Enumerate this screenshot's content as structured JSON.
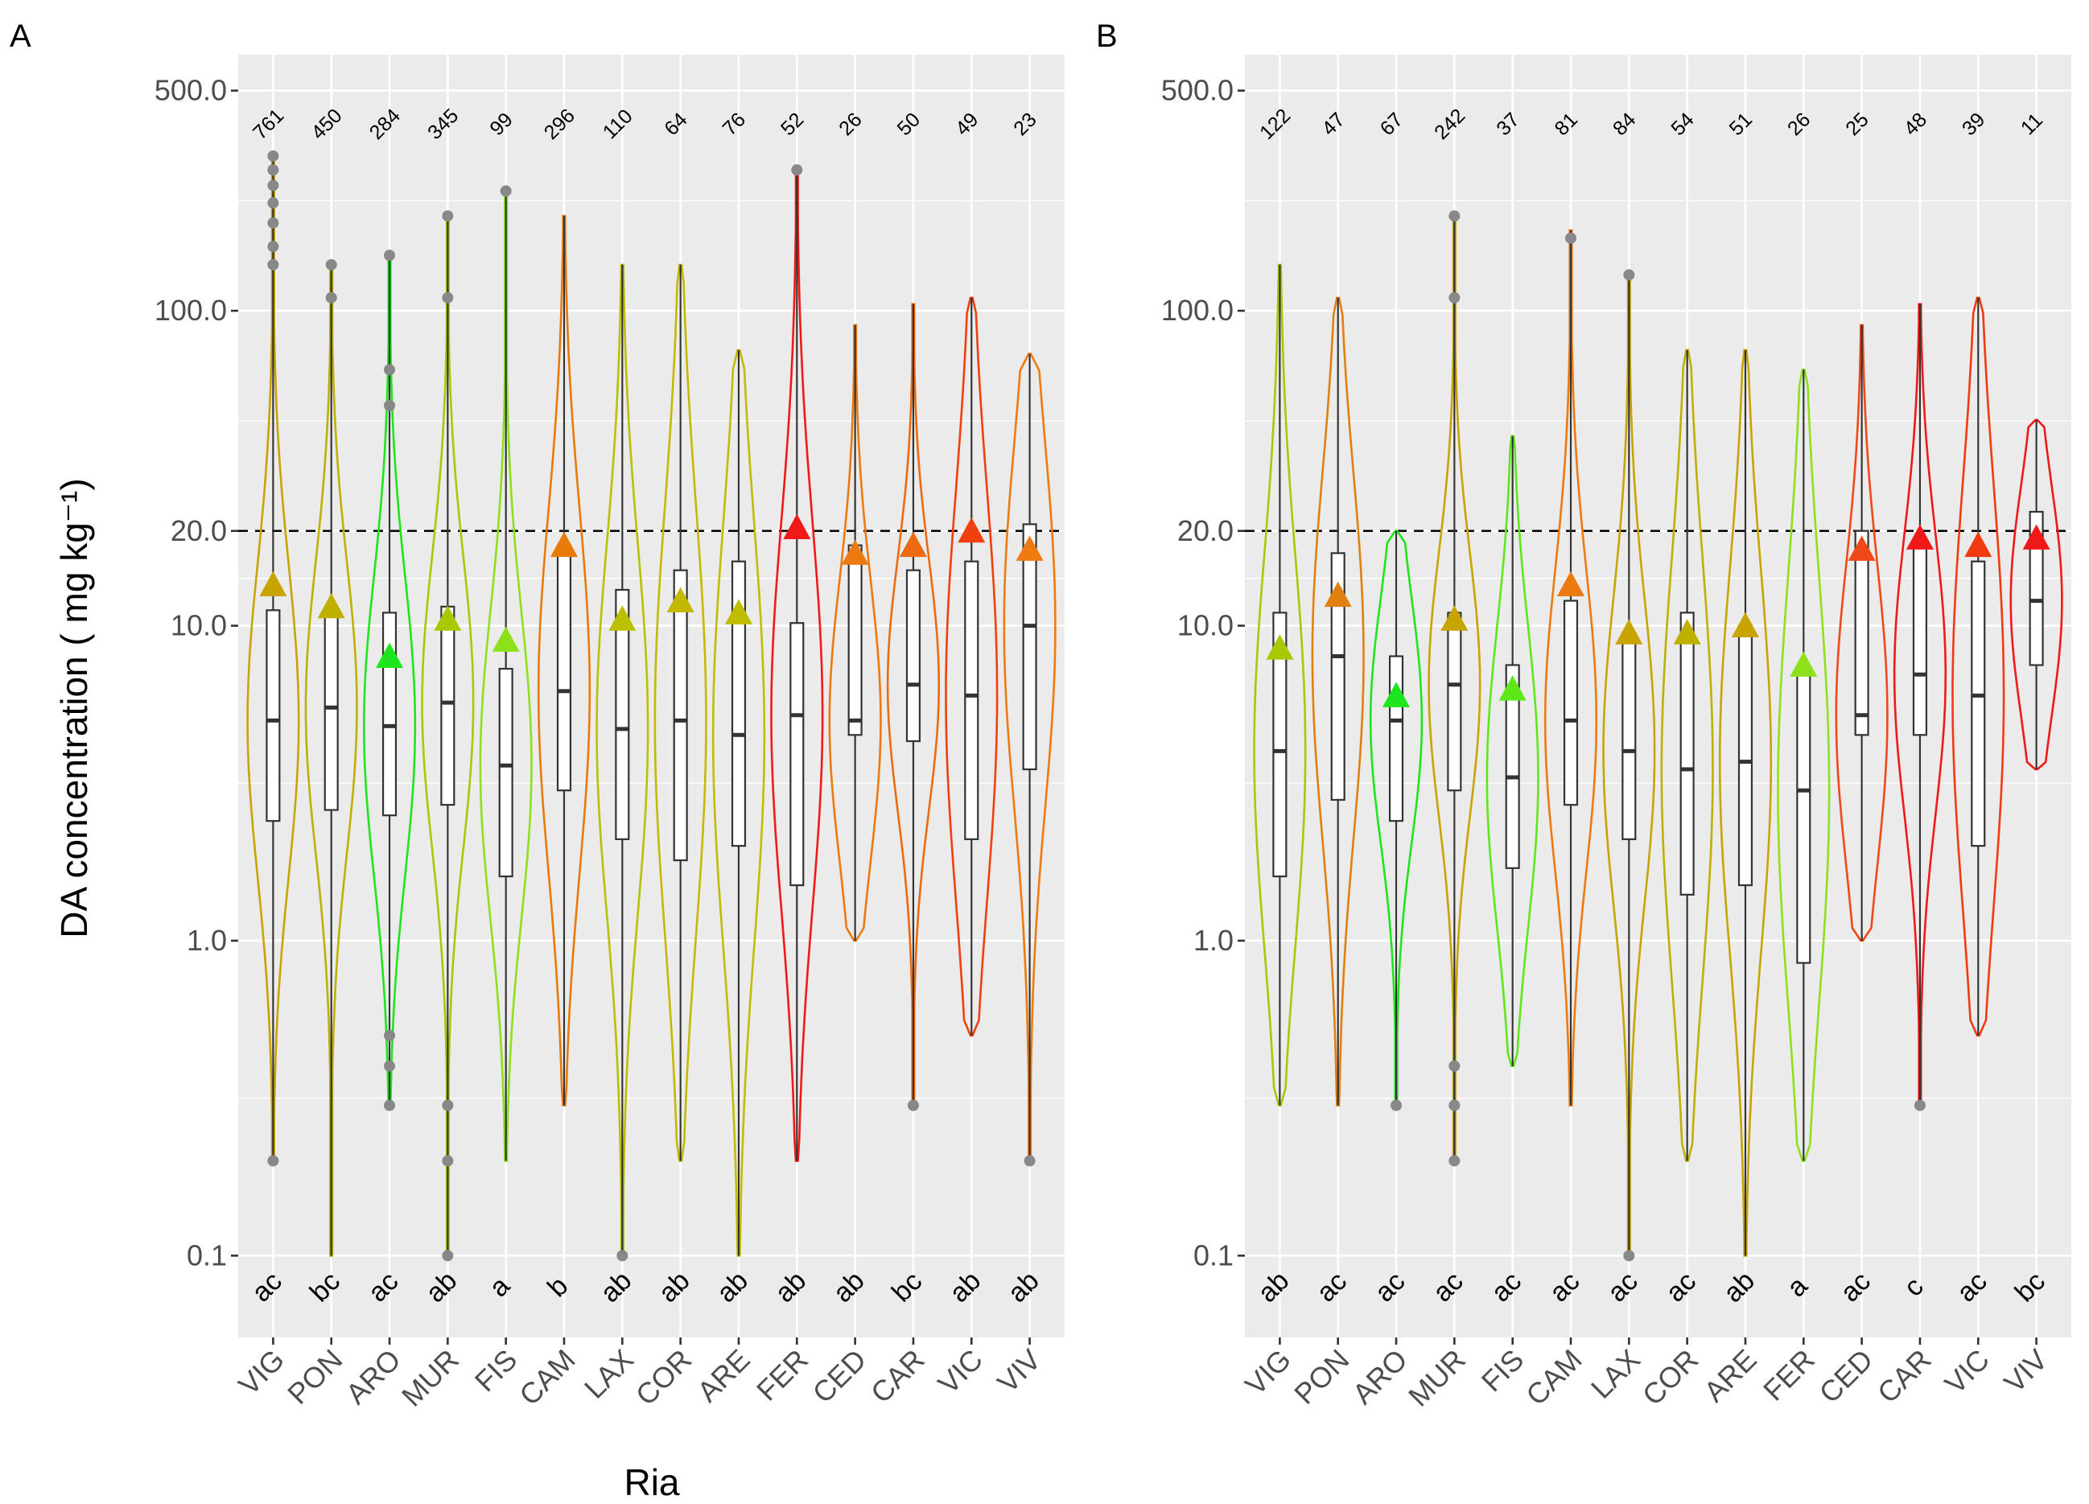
{
  "chart_data": [
    {
      "type": "violin",
      "panel_label": "A",
      "xlabel": "Ria",
      "ylabel": "DA concentration ( mg kg⁻¹)",
      "y_scale": "log10",
      "ylim": [
        0.055,
        650
      ],
      "y_ticks": [
        0.1,
        1.0,
        10.0,
        20.0,
        100.0,
        500.0
      ],
      "y_tick_labels": [
        "0.1",
        "1.0",
        "10.0",
        "20.0",
        "100.0",
        "500.0"
      ],
      "reference_line": 20,
      "categories": [
        "VIG",
        "PON",
        "ARO",
        "MUR",
        "FIS",
        "CAM",
        "LAX",
        "COR",
        "ARE",
        "FER",
        "CED",
        "CAR",
        "VIC",
        "VIV"
      ],
      "counts": [
        "761",
        "450",
        "284",
        "345",
        "99",
        "296",
        "110",
        "64",
        "76",
        "52",
        "26",
        "50",
        "49",
        "23"
      ],
      "letters": [
        "ac",
        "bc",
        "ac",
        "ab",
        "a",
        "b",
        "ab",
        "ab",
        "ab",
        "ab",
        "ab",
        "bc",
        "ab",
        "ab"
      ],
      "colors": [
        "#c8a400",
        "#bfb000",
        "#1ee61e",
        "#a8c800",
        "#8ee01a",
        "#e87a0a",
        "#b8c000",
        "#c4b800",
        "#c0bc00",
        "#f01818",
        "#ec7a10",
        "#ec6a10",
        "#f04010",
        "#ee7a10"
      ],
      "min": [
        0.2,
        0.1,
        0.3,
        0.1,
        0.2,
        0.3,
        0.1,
        0.2,
        0.1,
        0.2,
        1.0,
        0.3,
        0.5,
        0.2
      ],
      "q1": [
        2.4,
        2.6,
        2.5,
        2.7,
        1.6,
        3.0,
        2.1,
        1.8,
        2.0,
        1.5,
        4.5,
        4.3,
        2.1,
        3.5
      ],
      "median": [
        5.0,
        5.5,
        4.8,
        5.7,
        3.6,
        6.2,
        4.7,
        5.0,
        4.5,
        5.2,
        5.0,
        6.5,
        6.0,
        10.0
      ],
      "q3": [
        11.2,
        11.0,
        11.0,
        11.5,
        7.3,
        18.0,
        13.0,
        15.0,
        16.0,
        10.2,
        18.0,
        15.0,
        16.0,
        21.0
      ],
      "max": [
        300,
        140,
        150,
        200,
        240,
        200,
        140,
        140,
        75,
        280,
        90,
        105,
        110,
        73
      ],
      "mean": [
        13.5,
        11.5,
        8.0,
        10.5,
        9.0,
        18.0,
        10.5,
        12.0,
        11.0,
        20.5,
        17.0,
        18.0,
        20.0,
        17.5
      ],
      "outliers": [
        [
          0.2,
          140,
          160,
          190,
          220,
          250,
          280,
          310
        ],
        [
          110,
          140
        ],
        [
          0.3,
          0.4,
          0.5,
          50,
          65,
          150
        ],
        [
          0.1,
          0.2,
          0.3,
          110,
          200
        ],
        [
          240
        ],
        [],
        [
          0.1
        ],
        [],
        [],
        [
          280
        ],
        [],
        [
          0.3
        ],
        [],
        [
          0.2
        ]
      ]
    },
    {
      "type": "violin",
      "panel_label": "B",
      "xlabel": "",
      "ylabel": "",
      "y_scale": "log10",
      "ylim": [
        0.055,
        650
      ],
      "y_ticks": [
        0.1,
        1.0,
        10.0,
        20.0,
        100.0,
        500.0
      ],
      "y_tick_labels": [
        "0.1",
        "1.0",
        "10.0",
        "20.0",
        "100.0",
        "500.0"
      ],
      "reference_line": 20,
      "categories": [
        "VIG",
        "PON",
        "ARO",
        "MUR",
        "FIS",
        "CAM",
        "LAX",
        "COR",
        "ARE",
        "FER",
        "CED",
        "CAR",
        "VIC",
        "VIV"
      ],
      "counts": [
        "122",
        "47",
        "67",
        "242",
        "37",
        "81",
        "84",
        "54",
        "51",
        "26",
        "25",
        "48",
        "39",
        "11"
      ],
      "letters": [
        "ab",
        "ac",
        "ac",
        "ac",
        "ac",
        "ac",
        "ac",
        "ac",
        "ab",
        "a",
        "ac",
        "c",
        "ac",
        "bc"
      ],
      "colors": [
        "#a8c800",
        "#e08010",
        "#1ee61e",
        "#c8a400",
        "#5ee81a",
        "#ec7a10",
        "#c8a400",
        "#bfb000",
        "#c8a400",
        "#8ee01a",
        "#f04818",
        "#f01818",
        "#f03a12",
        "#f01818"
      ],
      "min": [
        0.3,
        0.3,
        0.3,
        0.2,
        0.4,
        0.3,
        0.1,
        0.2,
        0.1,
        0.2,
        1.0,
        0.3,
        0.5,
        3.5
      ],
      "q1": [
        1.6,
        2.8,
        2.4,
        3.0,
        1.7,
        2.7,
        2.1,
        1.4,
        1.5,
        0.85,
        4.5,
        4.5,
        2.0,
        7.5
      ],
      "median": [
        4.0,
        8.0,
        5.0,
        6.5,
        3.3,
        5.0,
        4.0,
        3.5,
        3.7,
        3.0,
        5.2,
        7.0,
        6.0,
        12.0
      ],
      "q3": [
        11.0,
        17.0,
        8.0,
        11.0,
        7.5,
        12.0,
        9.5,
        11.0,
        10.0,
        7.0,
        20.0,
        18.0,
        16.0,
        23.0
      ],
      "max": [
        140,
        110,
        20,
        200,
        40,
        180,
        130,
        75,
        75,
        65,
        90,
        105,
        110,
        45
      ],
      "mean": [
        8.5,
        12.5,
        6.0,
        10.5,
        6.3,
        13.5,
        9.5,
        9.5,
        10.0,
        7.5,
        17.5,
        19.0,
        18.0,
        19.0
      ],
      "outliers": [
        [],
        [],
        [
          0.3
        ],
        [
          0.2,
          0.3,
          0.4,
          110,
          200
        ],
        [],
        [
          170
        ],
        [
          0.1,
          130
        ],
        [],
        [],
        [],
        [],
        [
          0.3
        ],
        [],
        []
      ]
    }
  ]
}
